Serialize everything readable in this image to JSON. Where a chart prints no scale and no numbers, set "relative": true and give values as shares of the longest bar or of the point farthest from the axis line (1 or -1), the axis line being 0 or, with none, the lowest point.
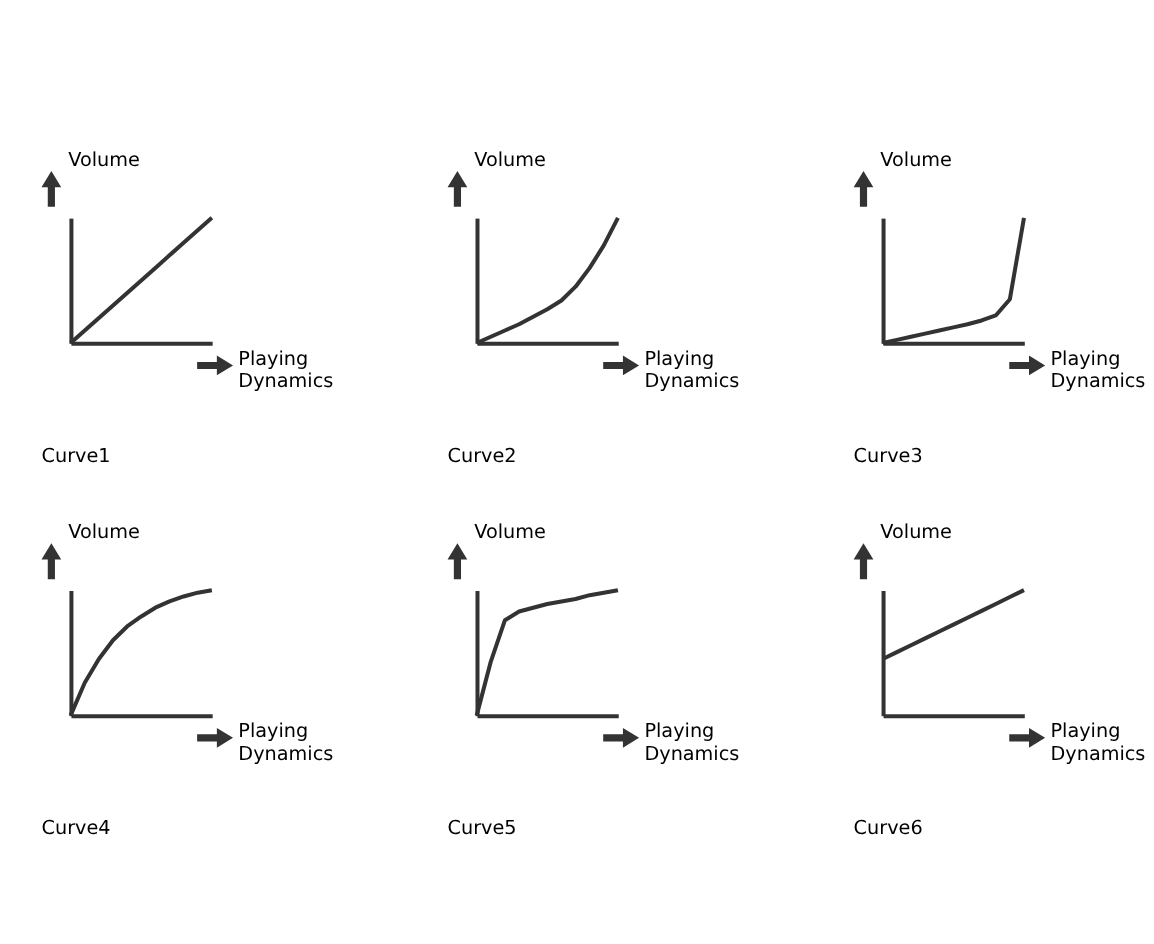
{
  "chart_data": [
    {
      "type": "line",
      "title": "Curve1",
      "xlabel": "Playing Dynamics",
      "ylabel": "Volume",
      "relative": true,
      "categories": [
        null,
        null,
        null,
        null,
        null,
        null,
        null,
        null,
        null,
        null,
        null
      ],
      "series": [
        {
          "color": "#333333",
          "values": [
            0,
            0.1,
            0.2,
            0.3,
            0.4,
            0.5,
            0.6,
            0.7,
            0.8,
            0.9,
            1
          ]
        }
      ]
    },
    {
      "type": "line",
      "title": "Curve2",
      "xlabel": "Playing Dynamics",
      "ylabel": "Volume",
      "relative": true,
      "categories": [
        null,
        null,
        null,
        null,
        null,
        null,
        null,
        null,
        null,
        null,
        null
      ],
      "series": [
        {
          "color": "#333333",
          "values": [
            0,
            0.05,
            0.1,
            0.15,
            0.21,
            0.27,
            0.34,
            0.45,
            0.6,
            0.78,
            1
          ]
        }
      ]
    },
    {
      "type": "line",
      "title": "Curve3",
      "xlabel": "Playing Dynamics",
      "ylabel": "Volume",
      "relative": true,
      "categories": [
        null,
        null,
        null,
        null,
        null,
        null,
        null,
        null,
        null,
        null,
        null
      ],
      "series": [
        {
          "color": "#333333",
          "values": [
            0,
            0.025,
            0.05,
            0.075,
            0.1,
            0.125,
            0.15,
            0.18,
            0.22,
            0.35,
            1
          ]
        }
      ]
    },
    {
      "type": "line",
      "title": "Curve4",
      "xlabel": "Playing Dynamics",
      "ylabel": "Volume",
      "relative": true,
      "categories": [
        null,
        null,
        null,
        null,
        null,
        null,
        null,
        null,
        null,
        null,
        null
      ],
      "series": [
        {
          "color": "#333333",
          "values": [
            0,
            0.26,
            0.45,
            0.6,
            0.71,
            0.79,
            0.86,
            0.91,
            0.95,
            0.98,
            1
          ]
        }
      ]
    },
    {
      "type": "line",
      "title": "Curve5",
      "xlabel": "Playing Dynamics",
      "ylabel": "Volume",
      "relative": true,
      "categories": [
        null,
        null,
        null,
        null,
        null,
        null,
        null,
        null,
        null,
        null,
        null
      ],
      "series": [
        {
          "color": "#333333",
          "values": [
            0,
            0.43,
            0.76,
            0.83,
            0.86,
            0.89,
            0.91,
            0.93,
            0.96,
            0.98,
            1
          ]
        }
      ]
    },
    {
      "type": "line",
      "title": "Curve6",
      "xlabel": "Playing Dynamics",
      "ylabel": "Volume",
      "relative": true,
      "categories": [
        null,
        null,
        null,
        null,
        null,
        null,
        null,
        null,
        null,
        null,
        null
      ],
      "series": [
        {
          "color": "#333333",
          "values": [
            0.45,
            0.505,
            0.56,
            0.615,
            0.67,
            0.725,
            0.78,
            0.835,
            0.89,
            0.945,
            1
          ]
        }
      ]
    }
  ]
}
